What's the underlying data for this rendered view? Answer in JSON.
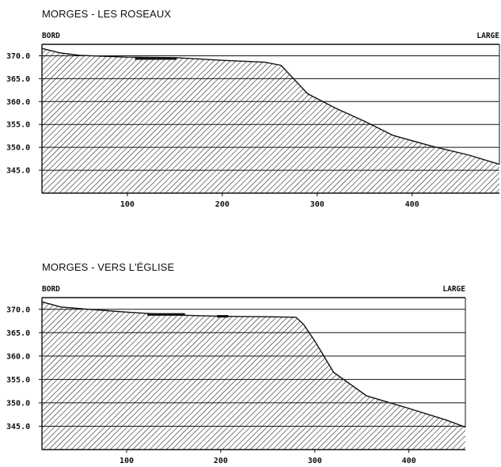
{
  "chart_data": [
    {
      "type": "area",
      "title": "MORGES - LES ROSEAUX",
      "left_label": "BORD",
      "right_label": "LARGE",
      "xlim": [
        10,
        492
      ],
      "ylim": [
        340.0,
        372.5
      ],
      "x_ticks": [
        100,
        200,
        300,
        400
      ],
      "y_ticks": [
        370.0,
        365.0,
        360.0,
        355.0,
        350.0,
        345.0
      ],
      "y_tick_labels": [
        "370.0",
        "365.0",
        "360.0",
        "355.0",
        "350.0",
        "345.0"
      ],
      "grid": "horizontal",
      "fill": "hatched",
      "profile": [
        {
          "x": 10,
          "y": 371.6
        },
        {
          "x": 30,
          "y": 370.6
        },
        {
          "x": 50,
          "y": 370.1
        },
        {
          "x": 100,
          "y": 369.7
        },
        {
          "x": 150,
          "y": 369.6
        },
        {
          "x": 200,
          "y": 369.0
        },
        {
          "x": 245,
          "y": 368.6
        },
        {
          "x": 262,
          "y": 367.9
        },
        {
          "x": 290,
          "y": 361.7
        },
        {
          "x": 320,
          "y": 358.5
        },
        {
          "x": 350,
          "y": 355.7
        },
        {
          "x": 380,
          "y": 352.6
        },
        {
          "x": 420,
          "y": 350.3
        },
        {
          "x": 460,
          "y": 348.3
        },
        {
          "x": 492,
          "y": 346.3
        }
      ],
      "marks": [
        {
          "x_start": 108,
          "x_end": 152,
          "y": 369.4
        }
      ]
    },
    {
      "type": "area",
      "title": "MORGES - VERS L'ÉGLISE",
      "left_label": "BORD",
      "right_label": "LARGE",
      "xlim": [
        10,
        460
      ],
      "ylim": [
        340.0,
        372.5
      ],
      "x_ticks": [
        100,
        200,
        300,
        400
      ],
      "y_ticks": [
        370.0,
        365.0,
        360.0,
        355.0,
        350.0,
        345.0
      ],
      "y_tick_labels": [
        "370.0",
        "365.0",
        "360.0",
        "355.0",
        "350.0",
        "345.0"
      ],
      "grid": "horizontal",
      "fill": "hatched",
      "profile": [
        {
          "x": 10,
          "y": 371.6
        },
        {
          "x": 30,
          "y": 370.5
        },
        {
          "x": 60,
          "y": 370.0
        },
        {
          "x": 100,
          "y": 369.4
        },
        {
          "x": 150,
          "y": 368.8
        },
        {
          "x": 200,
          "y": 368.5
        },
        {
          "x": 250,
          "y": 368.4
        },
        {
          "x": 280,
          "y": 368.3
        },
        {
          "x": 288,
          "y": 366.8
        },
        {
          "x": 300,
          "y": 363.2
        },
        {
          "x": 320,
          "y": 356.5
        },
        {
          "x": 355,
          "y": 351.5
        },
        {
          "x": 400,
          "y": 348.8
        },
        {
          "x": 440,
          "y": 346.3
        },
        {
          "x": 460,
          "y": 344.8
        }
      ],
      "marks": [
        {
          "x_start": 122,
          "x_end": 162,
          "y": 368.9
        },
        {
          "x_start": 196,
          "x_end": 208,
          "y": 368.5
        }
      ]
    }
  ]
}
